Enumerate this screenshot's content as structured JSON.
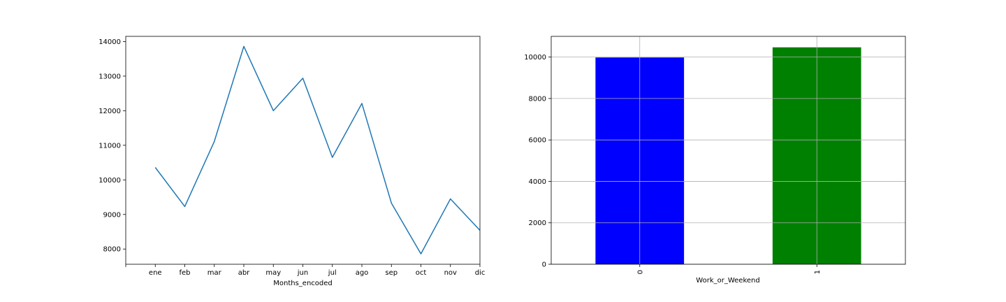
{
  "chart_data": [
    {
      "type": "line",
      "xlabel": "Months_encoded",
      "ylabel": "",
      "categories": [
        "",
        "ene",
        "feb",
        "mar",
        "abr",
        "may",
        "jun",
        "jul",
        "ago",
        "sep",
        "oct",
        "nov",
        "dic"
      ],
      "series": [
        {
          "values": [
            null,
            10360,
            9230,
            11110,
            13860,
            12000,
            12940,
            10650,
            12210,
            9330,
            7860,
            9450,
            8540
          ],
          "color": "#1f77b4"
        }
      ],
      "ylim": [
        7560,
        14150
      ],
      "yticks": [
        8000,
        9000,
        10000,
        11000,
        12000,
        13000,
        14000
      ],
      "grid": false
    },
    {
      "type": "bar",
      "xlabel": "Work_or_Weekend",
      "ylabel": "",
      "categories": [
        "0",
        "1"
      ],
      "values": [
        9980,
        10470
      ],
      "colors": [
        "#0000ff",
        "#008000"
      ],
      "ylim": [
        0,
        11000
      ],
      "yticks": [
        0,
        2000,
        4000,
        6000,
        8000,
        10000
      ],
      "grid": true
    }
  ]
}
